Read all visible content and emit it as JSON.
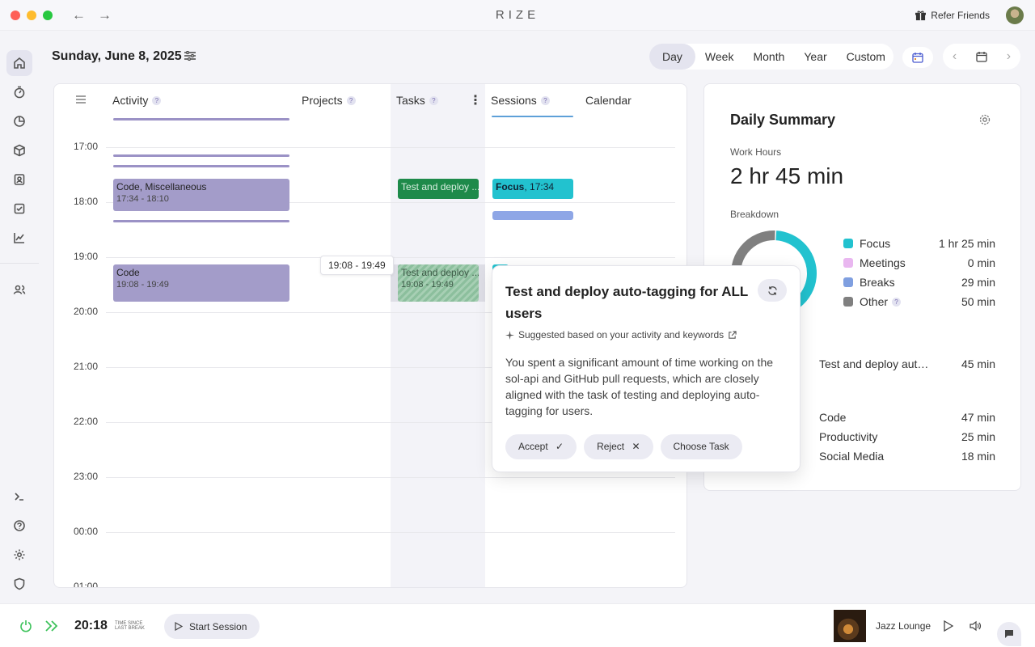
{
  "app": {
    "title": "RIZE",
    "refer_label": "Refer Friends"
  },
  "header": {
    "date": "Sunday, June 8, 2025",
    "ranges": [
      "Day",
      "Week",
      "Month",
      "Year",
      "Custom"
    ],
    "active_range": "Day"
  },
  "timeline": {
    "columns": {
      "activity": "Activity",
      "projects": "Projects",
      "tasks": "Tasks",
      "sessions": "Sessions",
      "calendar": "Calendar"
    },
    "hours": [
      "17:00",
      "18:00",
      "19:00",
      "20:00",
      "21:00",
      "22:00",
      "23:00",
      "00:00",
      "01:00"
    ],
    "activity_blocks": [
      {
        "title": "Code, Miscellaneous",
        "time": "17:34 - 18:10"
      },
      {
        "title": "Code",
        "time": "19:08 - 19:49"
      }
    ],
    "task_blocks": [
      {
        "title": "Test and deploy ..."
      },
      {
        "title": "Test and deploy ...",
        "time": "19:08 - 19:49"
      }
    ],
    "session_blocks": [
      {
        "title": "Focus",
        "time": "17:34"
      }
    ],
    "hover_time": "19:08 - 19:49"
  },
  "popup": {
    "title": "Test and deploy auto-tagging for ALL users",
    "suggested": "Suggested based on your activity and keywords",
    "body": "You spent a significant amount of time working on the sol-api and GitHub pull requests, which are closely aligned with the task of testing and deploying auto-tagging for users.",
    "accept": "Accept",
    "reject": "Reject",
    "choose": "Choose Task"
  },
  "summary": {
    "title": "Daily Summary",
    "work_hours_label": "Work Hours",
    "work_hours": "2 hr 45 min",
    "breakdown_label": "Breakdown",
    "breakdown": [
      {
        "name": "Focus",
        "value": "1 hr 25 min",
        "color": "#22c2cf",
        "fraction": 0.52
      },
      {
        "name": "Meetings",
        "value": "0 min",
        "color": "#e9b7f0",
        "fraction": 0.0
      },
      {
        "name": "Breaks",
        "value": "29 min",
        "color": "#7f9fe0",
        "fraction": 0.18
      },
      {
        "name": "Other",
        "value": "50 min",
        "color": "#808080",
        "fraction": 0.3
      }
    ],
    "tasks": [
      {
        "name": "Test and deploy aut…",
        "value": "45 min"
      }
    ],
    "categories": [
      {
        "name": "Code",
        "value": "47 min"
      },
      {
        "name": "Productivity",
        "value": "25 min"
      },
      {
        "name": "Social Media",
        "value": "18 min"
      }
    ]
  },
  "bottom": {
    "timer": "20:18",
    "since_line1": "TIME SINCE",
    "since_line2": "LAST BREAK",
    "start_session": "Start Session",
    "music_title": "Jazz Lounge"
  }
}
